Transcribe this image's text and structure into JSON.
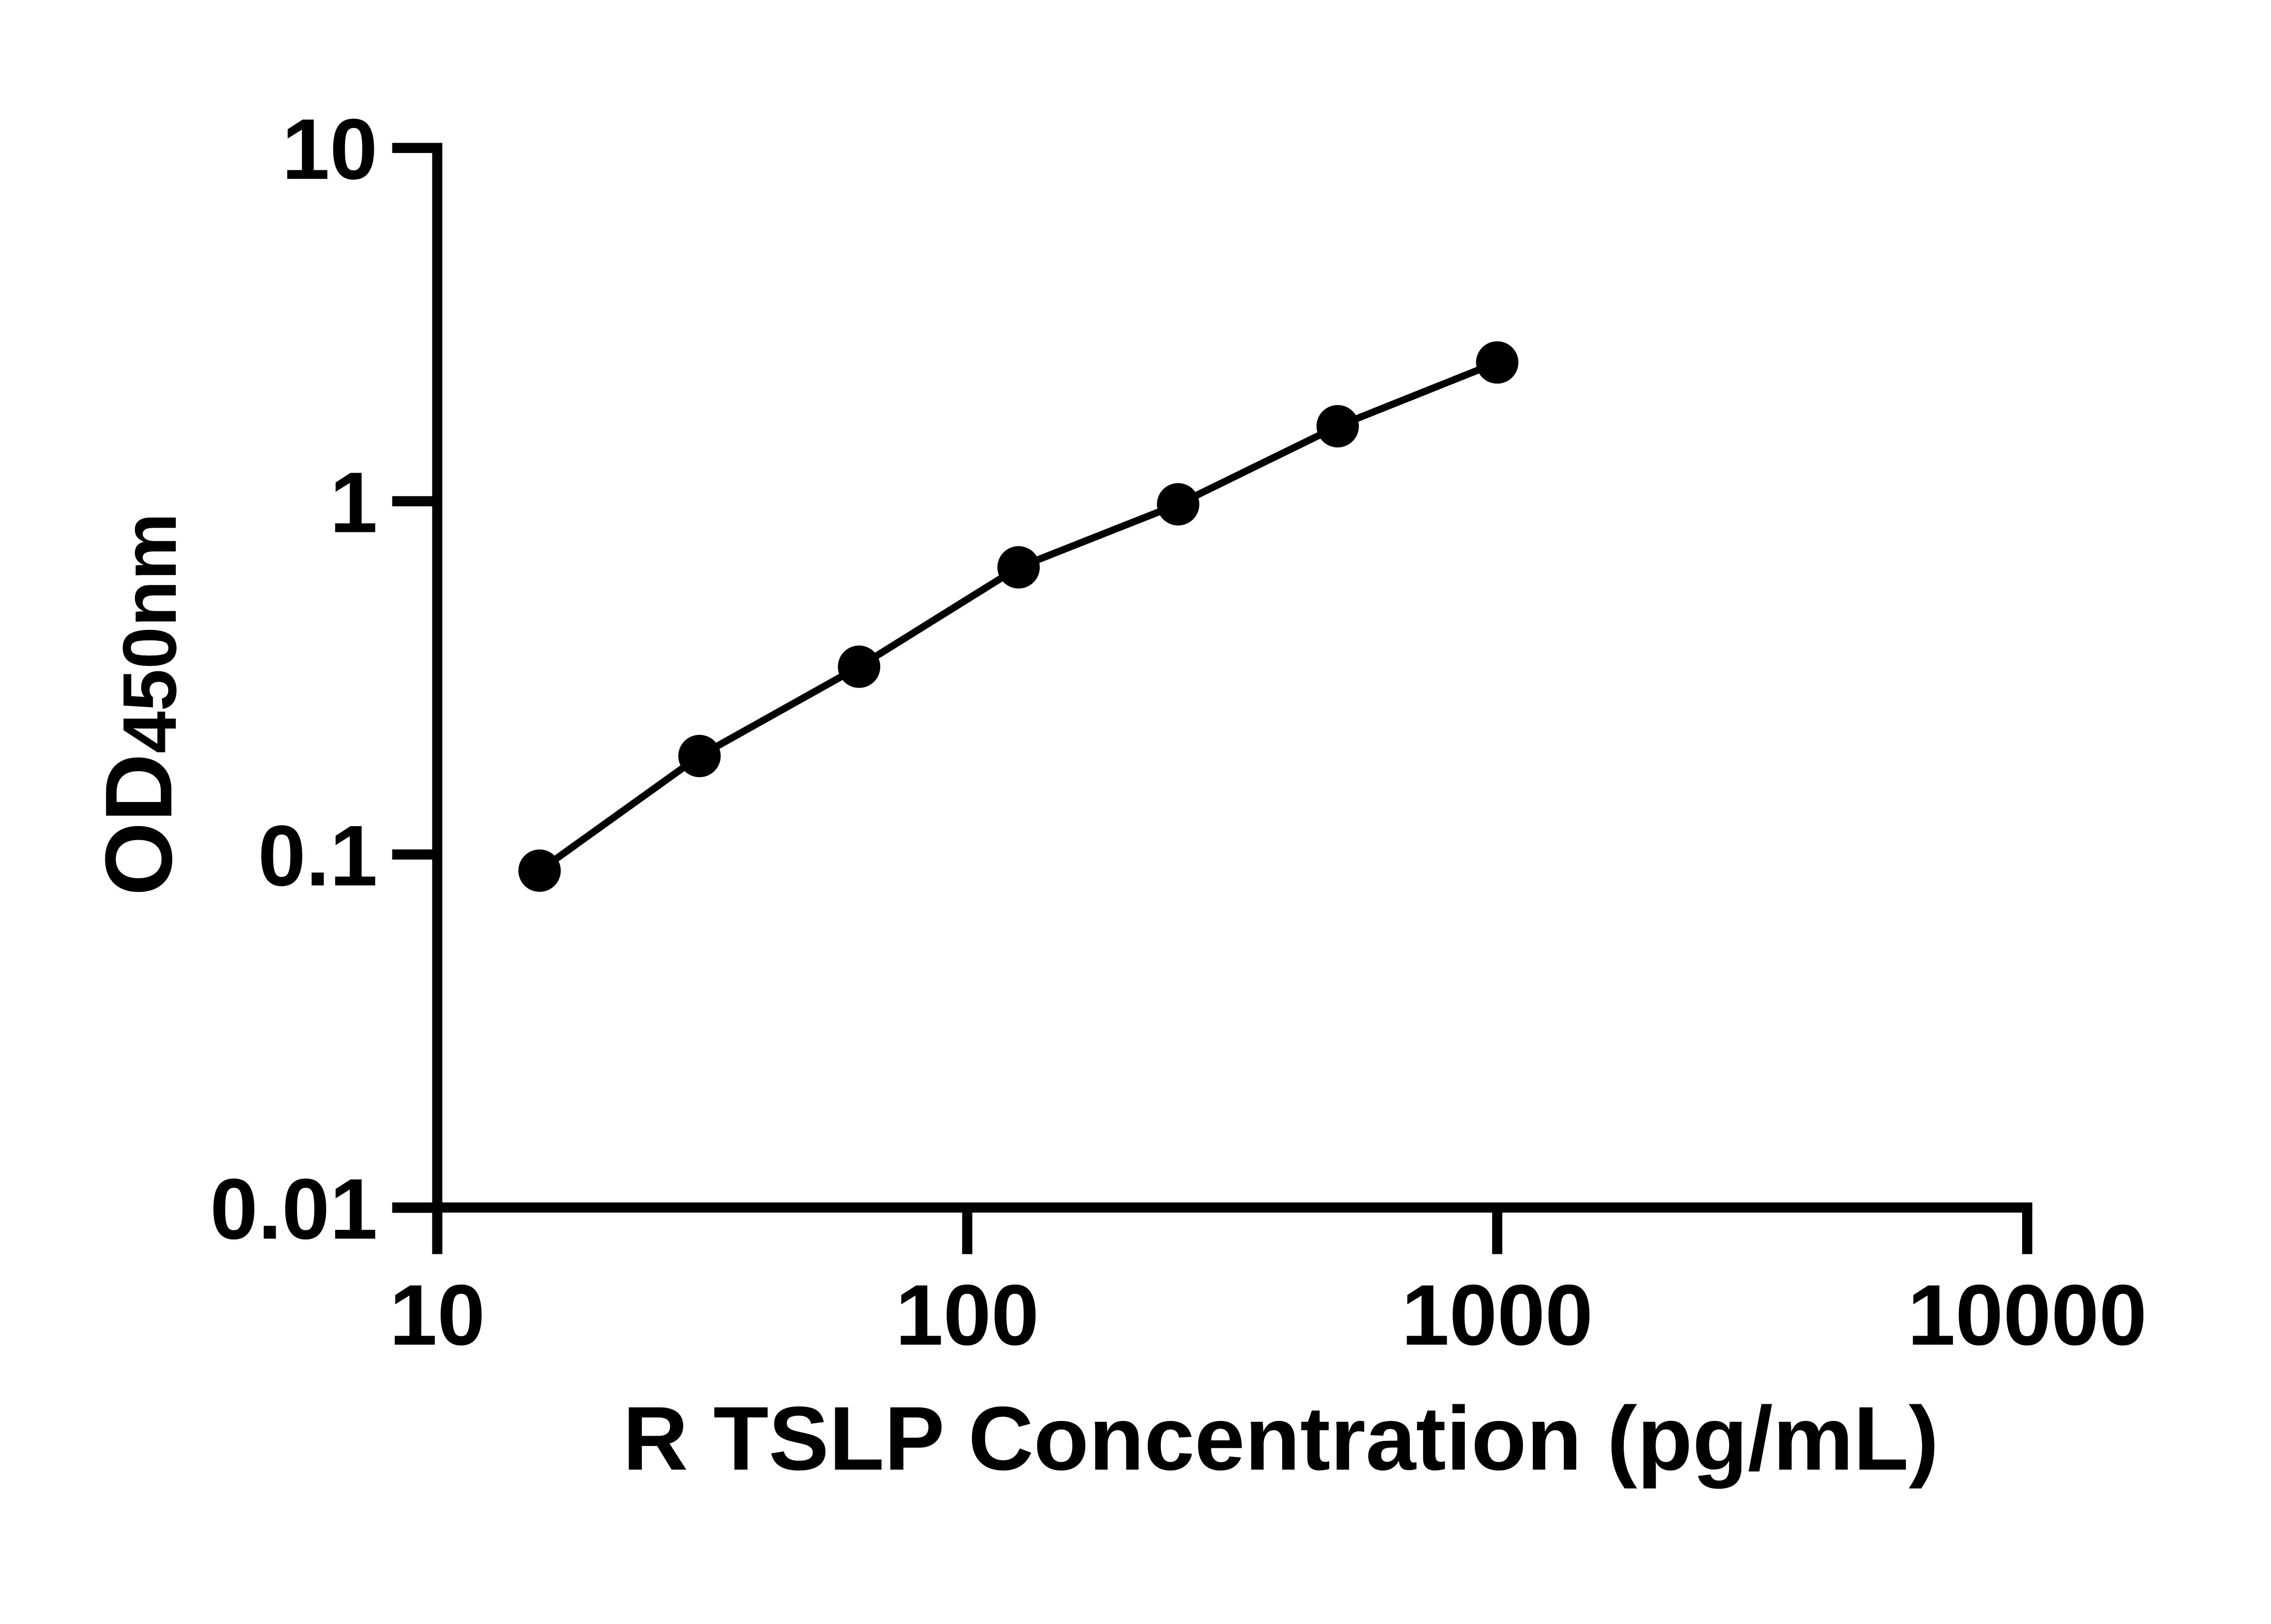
{
  "colors": {
    "foreground": "#000000",
    "background": "#ffffff"
  },
  "chart_data": {
    "type": "line",
    "subtype": "scatter-with-connecting-line",
    "x_scale": "log10",
    "y_scale": "log10",
    "xlabel": "R TSLP Concentration (pg/mL)",
    "ylabel": "OD450nm",
    "ylabel_main": "OD",
    "ylabel_sub": "450nm",
    "xlim": [
      10,
      10000
    ],
    "ylim": [
      0.01,
      10
    ],
    "x_ticks": [
      10,
      100,
      1000,
      10000
    ],
    "x_tick_labels": [
      "10",
      "100",
      "1000",
      "10000"
    ],
    "y_ticks": [
      10,
      1,
      0.1,
      0.01
    ],
    "y_tick_labels": [
      "10",
      "1",
      "0.1",
      "0.01"
    ],
    "grid": false,
    "legend": "none",
    "series": [
      {
        "marker": "filled-circle",
        "color": "#000000",
        "points": [
          {
            "x": 15.6,
            "y": 0.09
          },
          {
            "x": 31.25,
            "y": 0.19
          },
          {
            "x": 62.5,
            "y": 0.34
          },
          {
            "x": 125,
            "y": 0.65
          },
          {
            "x": 250,
            "y": 0.98
          },
          {
            "x": 500,
            "y": 1.63
          },
          {
            "x": 1000,
            "y": 2.47
          }
        ]
      }
    ]
  }
}
